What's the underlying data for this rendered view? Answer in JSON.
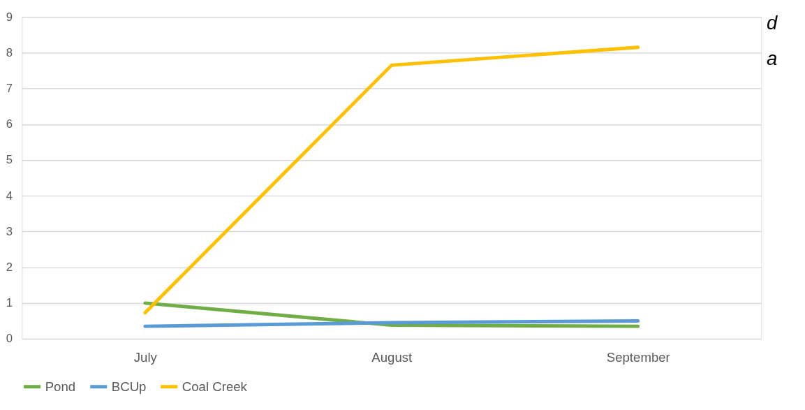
{
  "chart_data": {
    "type": "line",
    "categories": [
      "July",
      "August",
      "September"
    ],
    "series": [
      {
        "name": "Pond",
        "color": "#70ad47",
        "values": [
          1.0,
          0.38,
          0.35
        ]
      },
      {
        "name": "BCUp",
        "color": "#5b9bd5",
        "values": [
          0.35,
          0.45,
          0.5
        ]
      },
      {
        "name": "Coal Creek",
        "color": "#ffc000",
        "values": [
          0.73,
          7.65,
          8.15
        ]
      }
    ],
    "ylim": [
      0,
      9
    ],
    "yticks": [
      0,
      1,
      2,
      3,
      4,
      5,
      6,
      7,
      8,
      9
    ],
    "grid": "y",
    "legend": "bottom",
    "marker": "none",
    "line_style": "solid",
    "annotations": [
      "d",
      "a"
    ]
  }
}
